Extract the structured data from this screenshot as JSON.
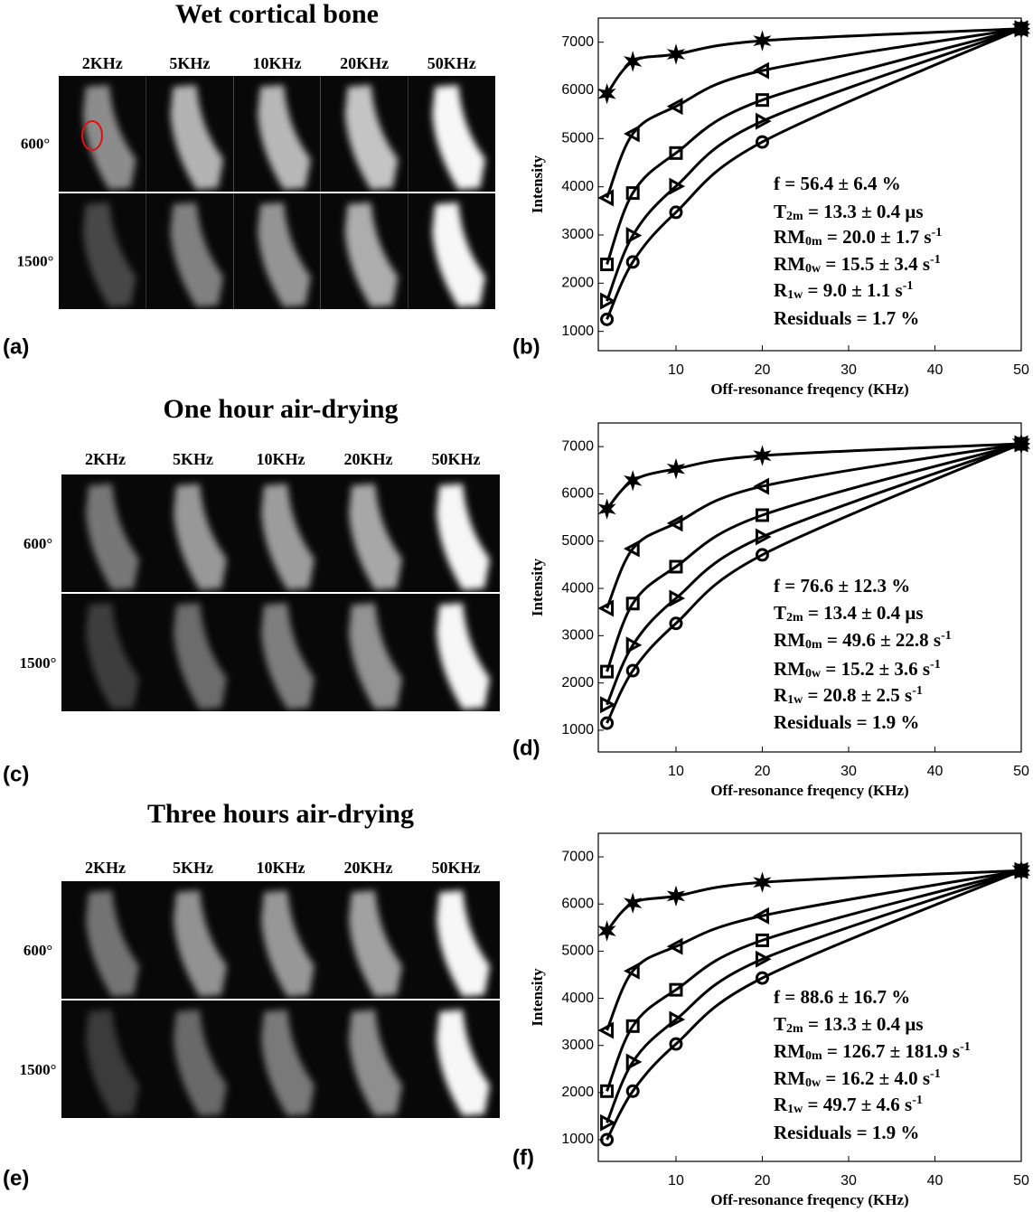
{
  "panels": [
    {
      "title": "Wet cortical bone",
      "label": "(a)",
      "columns": [
        "2KHz",
        "5KHz",
        "10KHz",
        "20KHz",
        "50KHz"
      ],
      "rows": [
        "600°",
        "1500°"
      ]
    },
    {
      "title": "One hour air-drying",
      "label": "(c)",
      "columns": [
        "2KHz",
        "5KHz",
        "10KHz",
        "20KHz",
        "50KHz"
      ],
      "rows": [
        "600°",
        "1500°"
      ]
    },
    {
      "title": "Three hours air-drying",
      "label": "(e)",
      "columns": [
        "2KHz",
        "5KHz",
        "10KHz",
        "20KHz",
        "50KHz"
      ],
      "rows": [
        "600°",
        "1500°"
      ]
    }
  ],
  "chart_data": [
    {
      "type": "line",
      "label": "(b)",
      "x_label": "Off-resonance freqency (KHz)",
      "y_label": "Intensity",
      "x": [
        2,
        5,
        10,
        20,
        50
      ],
      "xlim": [
        1,
        50
      ],
      "xticks": [
        10,
        20,
        30,
        40,
        50
      ],
      "ylim": [
        600,
        7500
      ],
      "yticks": [
        1000,
        2000,
        3000,
        4000,
        5000,
        6000,
        7000
      ],
      "series": [
        {
          "marker": "star",
          "color": "#000000",
          "values": [
            5930,
            6600,
            6750,
            7030,
            7280
          ]
        },
        {
          "marker": "triangle-left",
          "color": "#000000",
          "values": [
            3770,
            5100,
            5670,
            6410,
            7280
          ]
        },
        {
          "marker": "square",
          "color": "#000000",
          "values": [
            2390,
            3870,
            4700,
            5800,
            7280
          ]
        },
        {
          "marker": "triangle-right",
          "color": "#000000",
          "values": [
            1630,
            2990,
            4010,
            5360,
            7280
          ]
        },
        {
          "marker": "circle",
          "color": "#000000",
          "values": [
            1250,
            2440,
            3470,
            4930,
            7280
          ]
        }
      ],
      "annotations": [
        [
          {
            "text": "f = 56.4 ± 6.4 %"
          }
        ],
        [
          {
            "text": "T"
          },
          {
            "sub": "2m"
          },
          {
            "text": " = 13.3 ± 0.4 μs"
          }
        ],
        [
          {
            "text": "RM"
          },
          {
            "sub": "0m"
          },
          {
            "text": " = 20.0 ± 1.7 s"
          },
          {
            "sup": "-1"
          }
        ],
        [
          {
            "text": "RM"
          },
          {
            "sub": "0w"
          },
          {
            "text": " = 15.5 ± 3.4 s"
          },
          {
            "sup": "-1"
          }
        ],
        [
          {
            "text": "R"
          },
          {
            "sub": "1w"
          },
          {
            "text": " = 9.0 ± 1.1 s"
          },
          {
            "sup": "-1"
          }
        ],
        [
          {
            "text": "Residuals =   1.7 %"
          }
        ]
      ]
    },
    {
      "type": "line",
      "label": "(d)",
      "x_label": "Off-resonance freqency (KHz)",
      "y_label": "Intensity",
      "x": [
        2,
        5,
        10,
        20,
        50
      ],
      "xlim": [
        1,
        50
      ],
      "xticks": [
        10,
        20,
        30,
        40,
        50
      ],
      "ylim": [
        540,
        7500
      ],
      "yticks": [
        1000,
        2000,
        3000,
        4000,
        5000,
        6000,
        7000
      ],
      "series": [
        {
          "marker": "star",
          "color": "#000000",
          "values": [
            5680,
            6280,
            6530,
            6810,
            7060
          ]
        },
        {
          "marker": "triangle-left",
          "color": "#000000",
          "values": [
            3580,
            4840,
            5380,
            6160,
            7060
          ]
        },
        {
          "marker": "square",
          "color": "#000000",
          "values": [
            2240,
            3680,
            4460,
            5550,
            7060
          ]
        },
        {
          "marker": "triangle-right",
          "color": "#000000",
          "values": [
            1540,
            2800,
            3790,
            5090,
            7060
          ]
        },
        {
          "marker": "circle",
          "color": "#000000",
          "values": [
            1150,
            2260,
            3260,
            4710,
            7060
          ]
        }
      ],
      "annotations": [
        [
          {
            "text": "f = 76.6 ± 12.3 %"
          }
        ],
        [
          {
            "text": "T"
          },
          {
            "sub": "2m"
          },
          {
            "text": " = 13.4 ± 0.4 μs"
          }
        ],
        [
          {
            "text": "RM"
          },
          {
            "sub": "0m"
          },
          {
            "text": " = 49.6 ± 22.8 s"
          },
          {
            "sup": "-1"
          }
        ],
        [
          {
            "text": "RM"
          },
          {
            "sub": "0w"
          },
          {
            "text": " = 15.2 ± 3.6 s"
          },
          {
            "sup": "-1"
          }
        ],
        [
          {
            "text": "R"
          },
          {
            "sub": "1w"
          },
          {
            "text": " = 20.8 ± 2.5 s"
          },
          {
            "sup": "-1"
          }
        ],
        [
          {
            "text": "Residuals =   1.9 %"
          }
        ]
      ]
    },
    {
      "type": "line",
      "label": "(f)",
      "x_label": "Off-resonance freqency (KHz)",
      "y_label": "Intensity",
      "x": [
        2,
        5,
        10,
        20,
        50
      ],
      "xlim": [
        1,
        50
      ],
      "xticks": [
        10,
        20,
        30,
        40,
        50
      ],
      "ylim": [
        540,
        7500
      ],
      "yticks": [
        1000,
        2000,
        3000,
        4000,
        5000,
        6000,
        7000
      ],
      "series": [
        {
          "marker": "star",
          "color": "#000000",
          "values": [
            5430,
            6020,
            6170,
            6460,
            6710
          ]
        },
        {
          "marker": "triangle-left",
          "color": "#000000",
          "values": [
            3320,
            4580,
            5100,
            5750,
            6710
          ]
        },
        {
          "marker": "square",
          "color": "#000000",
          "values": [
            2030,
            3410,
            4180,
            5230,
            6710
          ]
        },
        {
          "marker": "triangle-right",
          "color": "#000000",
          "values": [
            1360,
            2650,
            3550,
            4830,
            6710
          ]
        },
        {
          "marker": "circle",
          "color": "#000000",
          "values": [
            1000,
            2030,
            3030,
            4430,
            6710
          ]
        }
      ],
      "annotations": [
        [
          {
            "text": "f = 88.6 ± 16.7 %"
          }
        ],
        [
          {
            "text": "T"
          },
          {
            "sub": "2m"
          },
          {
            "text": " = 13.3 ± 0.4 μs"
          }
        ],
        [
          {
            "text": "RM"
          },
          {
            "sub": "0m"
          },
          {
            "text": " = 126.7 ± 181.9 s"
          },
          {
            "sup": "-1"
          }
        ],
        [
          {
            "text": "RM"
          },
          {
            "sub": "0w"
          },
          {
            "text": " = 16.2 ± 4.0 s"
          },
          {
            "sup": "-1"
          }
        ],
        [
          {
            "text": "R"
          },
          {
            "sub": "1w"
          },
          {
            "text": " = 49.7 ± 4.6 s"
          },
          {
            "sup": "-1"
          }
        ],
        [
          {
            "text": "Residuals =   1.9 %"
          }
        ]
      ]
    }
  ]
}
